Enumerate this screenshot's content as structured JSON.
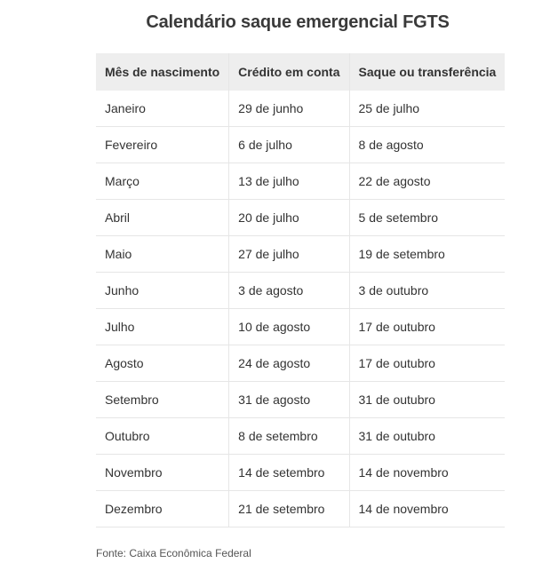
{
  "title": "Calendário saque emergencial FGTS",
  "table": {
    "headers": [
      "Mês de nascimento",
      "Crédito em conta",
      "Saque ou transferência"
    ],
    "rows": [
      [
        "Janeiro",
        "29 de junho",
        "25 de julho"
      ],
      [
        "Fevereiro",
        "6 de julho",
        "8 de agosto"
      ],
      [
        "Março",
        "13 de julho",
        "22 de agosto"
      ],
      [
        "Abril",
        "20 de julho",
        "5 de setembro"
      ],
      [
        "Maio",
        "27 de julho",
        "19 de setembro"
      ],
      [
        "Junho",
        "3 de agosto",
        "3 de outubro"
      ],
      [
        "Julho",
        "10 de agosto",
        "17 de outubro"
      ],
      [
        "Agosto",
        "24 de agosto",
        "17 de outubro"
      ],
      [
        "Setembro",
        "31 de agosto",
        "31 de outubro"
      ],
      [
        "Outubro",
        "8 de setembro",
        "31 de outubro"
      ],
      [
        "Novembro",
        "14 de setembro",
        "14 de novembro"
      ],
      [
        "Dezembro",
        "21 de setembro",
        "14 de novembro"
      ]
    ]
  },
  "source": "Fonte: Caixa Econômica Federal",
  "colors": {
    "header_bg": "#eeeeee",
    "border": "#e6e6e6",
    "text": "#333333"
  }
}
